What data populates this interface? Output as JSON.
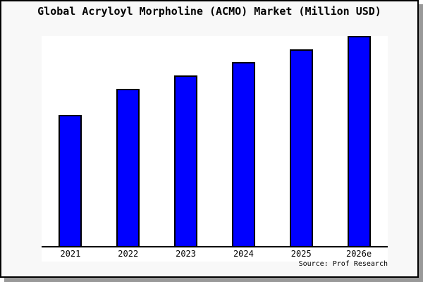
{
  "title": "Global Acryloyl Morpholine (ACMO) Market (Million USD)",
  "source": "Source: Prof Research",
  "colors": {
    "bar_fill": "#0000ff",
    "bar_border": "#000000",
    "plot_bg": "#ffffff",
    "margin_bg": "#f8f8f8",
    "frame_border": "#000000",
    "frame_shadow": "#999999",
    "text": "#000000"
  },
  "chart_data": {
    "type": "bar",
    "title": "Global Acryloyl Morpholine (ACMO) Market (Million USD)",
    "categories": [
      "2021",
      "2022",
      "2023",
      "2024",
      "2025",
      "2026e"
    ],
    "values": [
      62.5,
      74.9,
      81.3,
      87.6,
      93.6,
      100
    ],
    "values_note": "Chart shows no y-axis scale, gridlines or data labels; values are relative bar heights normalized so 2026e = 100.",
    "xlabel": "",
    "ylabel": "",
    "ylim_relative": [
      0,
      100
    ],
    "y_axis_visible": false,
    "gridlines": false,
    "legend": false,
    "bar_color": "#0000ff",
    "annotations": [
      "Source: Prof Research"
    ]
  }
}
